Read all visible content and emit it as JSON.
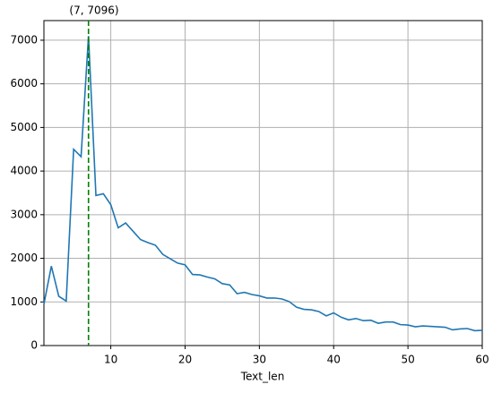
{
  "chart_data": {
    "type": "line",
    "xlabel": "Text_len",
    "annotation": "(7, 7096)",
    "vline": 7,
    "vline_color": "#008000",
    "x": [
      1,
      2,
      3,
      4,
      5,
      6,
      7,
      8,
      9,
      10,
      11,
      12,
      13,
      14,
      15,
      16,
      17,
      18,
      19,
      20,
      21,
      22,
      23,
      24,
      25,
      26,
      27,
      28,
      29,
      30,
      31,
      32,
      33,
      34,
      35,
      36,
      37,
      38,
      39,
      40,
      41,
      42,
      43,
      44,
      45,
      46,
      47,
      48,
      49,
      50,
      51,
      52,
      53,
      54,
      55,
      56,
      57,
      58,
      59,
      60
    ],
    "series": [
      {
        "color": "#1f77b4",
        "values": [
          950,
          1820,
          1130,
          1020,
          4500,
          4330,
          7096,
          3440,
          3480,
          3230,
          2700,
          2810,
          2620,
          2430,
          2360,
          2300,
          2090,
          1990,
          1890,
          1850,
          1630,
          1620,
          1570,
          1530,
          1420,
          1390,
          1190,
          1220,
          1170,
          1140,
          1090,
          1090,
          1070,
          1010,
          880,
          830,
          820,
          780,
          680,
          750,
          650,
          590,
          620,
          570,
          580,
          510,
          540,
          540,
          480,
          470,
          430,
          450,
          440,
          430,
          420,
          360,
          380,
          390,
          340,
          350
        ]
      }
    ],
    "xlim": [
      1,
      60
    ],
    "xticks": [
      10,
      20,
      30,
      40,
      50,
      60
    ],
    "ylim": [
      0,
      7450
    ],
    "yticks": [
      0,
      1000,
      2000,
      3000,
      4000,
      5000,
      6000,
      7000
    ],
    "grid": true
  }
}
